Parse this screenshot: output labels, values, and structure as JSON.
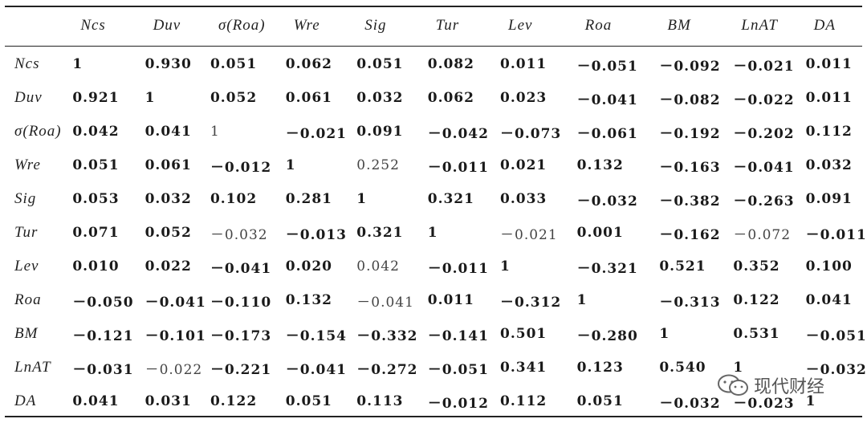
{
  "table": {
    "header": [
      "",
      "Ncs",
      "Duv",
      "σ(Roa)",
      "Wre",
      "Sig",
      "Tur",
      "Lev",
      "Roa",
      "BM",
      "LnAT",
      "DA"
    ],
    "rows": [
      {
        "label": "Ncs",
        "cells": [
          "1",
          "0.930",
          "0.051",
          "0.062",
          "0.051",
          "0.082",
          "0.011",
          "－0.051",
          "－0.092",
          "－0.021",
          "0.011"
        ]
      },
      {
        "label": "Duv",
        "cells": [
          "0.921",
          "1",
          "0.052",
          "0.061",
          "0.032",
          "0.062",
          "0.023",
          "－0.041",
          "－0.082",
          "－0.022",
          "0.011"
        ]
      },
      {
        "label": "σ(Roa)",
        "cells": [
          "0.042",
          "0.041",
          "1",
          "－0.021",
          "0.091",
          "－0.042",
          "－0.073",
          "－0.061",
          "－0.192",
          "－0.202",
          "0.112"
        ]
      },
      {
        "label": "Wre",
        "cells": [
          "0.051",
          "0.061",
          "－0.012",
          "1",
          "0.252",
          "－0.011",
          "0.021",
          "0.132",
          "－0.163",
          "－0.041",
          "0.032"
        ]
      },
      {
        "label": "Sig",
        "cells": [
          "0.053",
          "0.032",
          "0.102",
          "0.281",
          "1",
          "0.321",
          "0.033",
          "－0.032",
          "－0.382",
          "－0.263",
          "0.091"
        ]
      },
      {
        "label": "Tur",
        "cells": [
          "0.071",
          "0.052",
          "－0.032",
          "－0.013",
          "0.321",
          "1",
          "－0.021",
          "0.001",
          "－0.162",
          "－0.072",
          "－0.011"
        ]
      },
      {
        "label": "Lev",
        "cells": [
          "0.010",
          "0.022",
          "－0.041",
          "0.020",
          "0.042",
          "－0.011",
          "1",
          "－0.321",
          "0.521",
          "0.352",
          "0.100"
        ]
      },
      {
        "label": "Roa",
        "cells": [
          "－0.050",
          "－0.041",
          "－0.110",
          "0.132",
          "－0.041",
          "0.011",
          "－0.312",
          "1",
          "－0.313",
          "0.122",
          "0.041"
        ]
      },
      {
        "label": "BM",
        "cells": [
          "－0.121",
          "－0.101",
          "－0.173",
          "－0.154",
          "－0.332",
          "－0.141",
          "0.501",
          "－0.280",
          "1",
          "0.531",
          "－0.051"
        ]
      },
      {
        "label": "LnAT",
        "cells": [
          "－0.031",
          "－0.022",
          "－0.221",
          "－0.041",
          "－0.272",
          "－0.051",
          "0.341",
          "0.123",
          "0.540",
          "1",
          "－0.032"
        ]
      },
      {
        "label": "DA",
        "cells": [
          "0.041",
          "0.031",
          "0.122",
          "0.051",
          "0.113",
          "－0.012",
          "0.112",
          "0.051",
          "－0.032",
          "－0.023",
          "1"
        ]
      }
    ],
    "not_bold": [
      "2-3",
      "3-5",
      "5-3",
      "5-7",
      "5-10",
      "6-5",
      "7-5",
      "9-2"
    ]
  },
  "watermark": {
    "text": "现代财经",
    "icon": "wechat-icon"
  }
}
